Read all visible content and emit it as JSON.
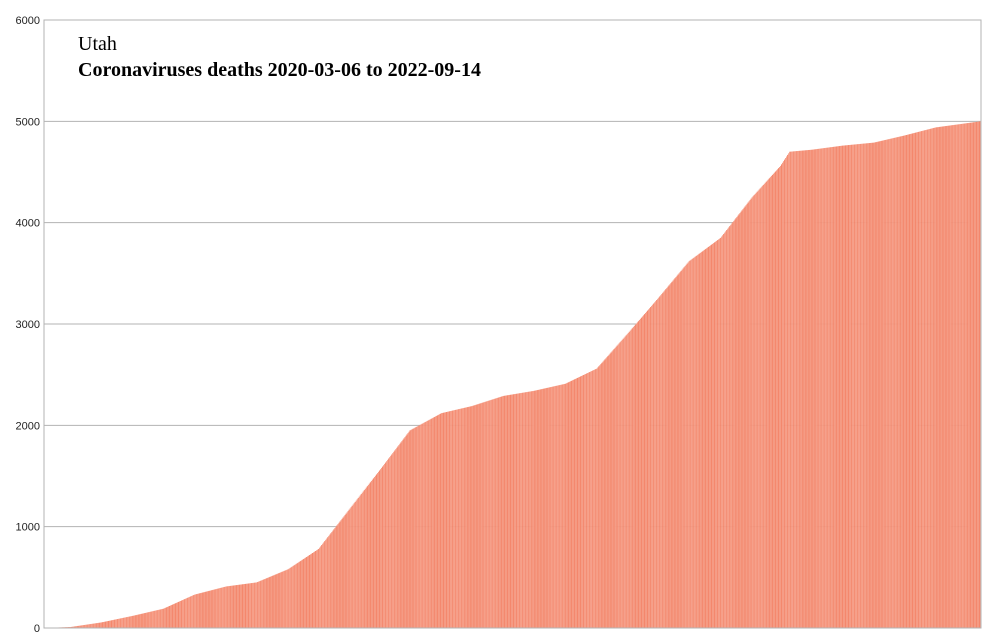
{
  "chart_data": {
    "type": "bar",
    "title": "Utah",
    "subtitle": "Coronaviruses deaths 2020-03-06 to 2022-09-14",
    "xlabel": "",
    "ylabel": "",
    "ylim": [
      0,
      6000
    ],
    "yticks": [
      "0",
      "1000",
      "2000",
      "3000",
      "4000",
      "5000",
      "6000"
    ],
    "grid": true,
    "legend": "none",
    "x_start": "2020-03-06",
    "x_end": "2022-09-14",
    "bar_color": "#f59b84",
    "bar_edge_color": "#f4876c",
    "keyframes": [
      {
        "date": "2020-03-06",
        "value": 0
      },
      {
        "date": "2020-04-01",
        "value": 10
      },
      {
        "date": "2020-05-01",
        "value": 55
      },
      {
        "date": "2020-06-01",
        "value": 120
      },
      {
        "date": "2020-07-01",
        "value": 190
      },
      {
        "date": "2020-08-01",
        "value": 330
      },
      {
        "date": "2020-09-01",
        "value": 410
      },
      {
        "date": "2020-10-01",
        "value": 450
      },
      {
        "date": "2020-11-01",
        "value": 580
      },
      {
        "date": "2020-12-01",
        "value": 780
      },
      {
        "date": "2021-01-01",
        "value": 1180
      },
      {
        "date": "2021-02-01",
        "value": 1580
      },
      {
        "date": "2021-03-01",
        "value": 1950
      },
      {
        "date": "2021-04-01",
        "value": 2120
      },
      {
        "date": "2021-05-01",
        "value": 2190
      },
      {
        "date": "2021-06-01",
        "value": 2290
      },
      {
        "date": "2021-07-01",
        "value": 2340
      },
      {
        "date": "2021-08-01",
        "value": 2410
      },
      {
        "date": "2021-09-01",
        "value": 2560
      },
      {
        "date": "2021-10-01",
        "value": 2900
      },
      {
        "date": "2021-11-01",
        "value": 3260
      },
      {
        "date": "2021-12-01",
        "value": 3620
      },
      {
        "date": "2022-01-01",
        "value": 3850
      },
      {
        "date": "2022-02-01",
        "value": 4250
      },
      {
        "date": "2022-03-01",
        "value": 4560
      },
      {
        "date": "2022-03-10",
        "value": 4700
      },
      {
        "date": "2022-04-01",
        "value": 4720
      },
      {
        "date": "2022-05-01",
        "value": 4760
      },
      {
        "date": "2022-06-01",
        "value": 4790
      },
      {
        "date": "2022-07-01",
        "value": 4860
      },
      {
        "date": "2022-08-01",
        "value": 4940
      },
      {
        "date": "2022-09-14",
        "value": 5000
      }
    ]
  }
}
